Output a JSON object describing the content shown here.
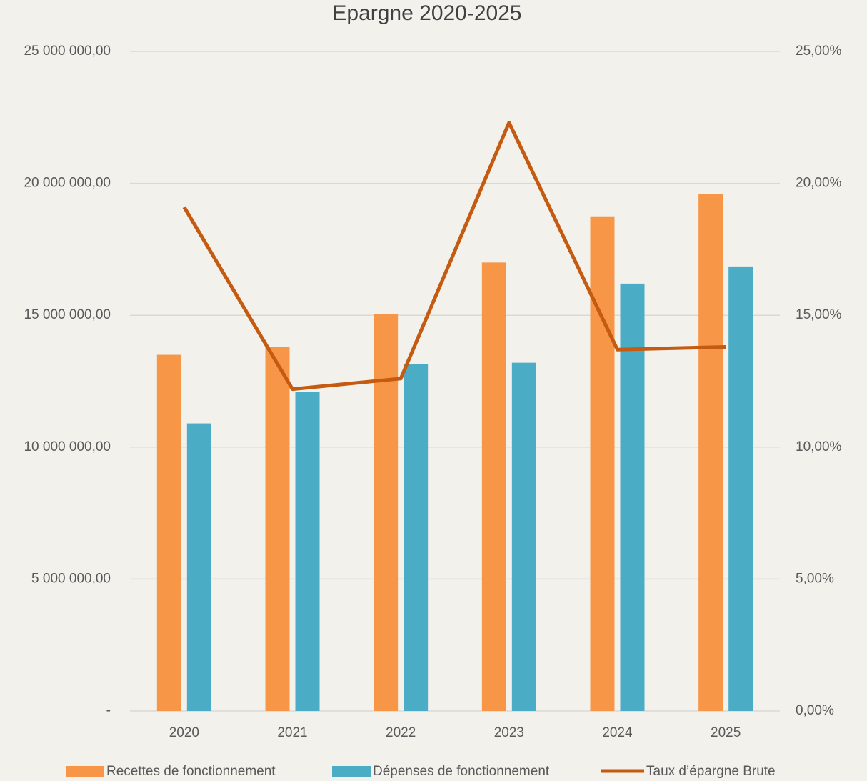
{
  "chart_data": {
    "type": "bar",
    "title": "Epargne 2020-2025",
    "categories": [
      "2020",
      "2021",
      "2022",
      "2023",
      "2024",
      "2025"
    ],
    "series": [
      {
        "name": "Recettes de fonctionnement",
        "color": "#f79646",
        "values": [
          13500000,
          13800000,
          15050000,
          17000000,
          18750000,
          19600000
        ]
      },
      {
        "name": "Dépenses de fonctionnement",
        "color": "#4bacc6",
        "values": [
          10900000,
          12100000,
          13150000,
          13200000,
          16200000,
          16850000
        ]
      },
      {
        "name": "Taux d’épargne Brute",
        "color": "#c55a11",
        "type": "line",
        "axis": "y2",
        "values": [
          19.1,
          12.2,
          12.6,
          22.3,
          13.7,
          13.8
        ]
      }
    ],
    "ylim": [
      0,
      25000000
    ],
    "yticks": [
      {
        "value": 0,
        "label": "-"
      },
      {
        "value": 5000000,
        "label": "5 000 000,00"
      },
      {
        "value": 10000000,
        "label": "10 000 000,00"
      },
      {
        "value": 15000000,
        "label": "15 000 000,00"
      },
      {
        "value": 20000000,
        "label": "20 000 000,00"
      },
      {
        "value": 25000000,
        "label": "25 000 000,00"
      }
    ],
    "y2lim": [
      0,
      25
    ],
    "y2ticks": [
      {
        "value": 0,
        "label": "0,00%"
      },
      {
        "value": 5,
        "label": "5,00%"
      },
      {
        "value": 10,
        "label": "10,00%"
      },
      {
        "value": 15,
        "label": "15,00%"
      },
      {
        "value": 20,
        "label": "20,00%"
      },
      {
        "value": 25,
        "label": "25,00%"
      }
    ],
    "grid": true,
    "legend": "bottom"
  }
}
